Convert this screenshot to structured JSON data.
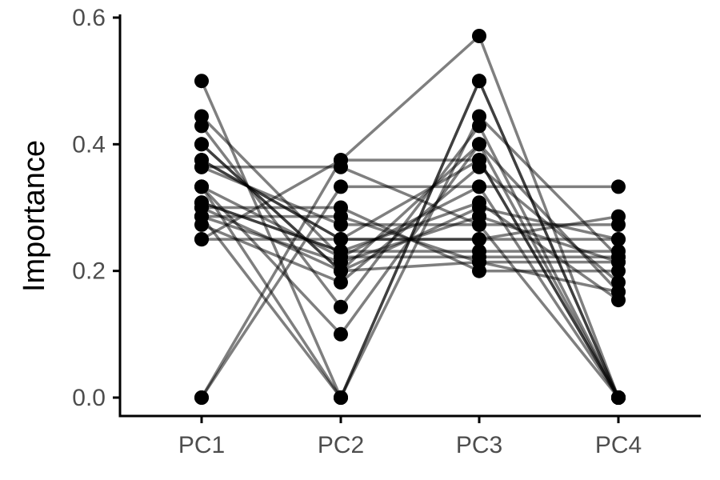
{
  "chart_data": {
    "type": "line",
    "title": "",
    "xlabel": "",
    "ylabel": "Importance",
    "categories": [
      "PC1",
      "PC2",
      "PC3",
      "PC4"
    ],
    "ylim": [
      0,
      0.6
    ],
    "yticks": [
      "0.0",
      "0.2",
      "0.4",
      "0.6"
    ],
    "ytick_values": [
      0,
      0.2,
      0.4,
      0.6
    ],
    "grid": false,
    "colors": {
      "line": "#000000",
      "point": "#000000",
      "tick_label": "#4d4d4d"
    },
    "series": [
      {
        "values": [
          0.5,
          0.0,
          0.5,
          0.0
        ]
      },
      {
        "values": [
          0.0,
          0.333,
          0.333,
          0.333
        ]
      },
      {
        "values": [
          0.0,
          0.375,
          0.571,
          0.0
        ]
      },
      {
        "values": [
          0.444,
          0.222,
          0.333,
          0.0
        ]
      },
      {
        "values": [
          0.429,
          0.143,
          0.429,
          0.0
        ]
      },
      {
        "values": [
          0.4,
          0.2,
          0.4,
          0.0
        ]
      },
      {
        "values": [
          0.375,
          0.25,
          0.375,
          0.0
        ]
      },
      {
        "values": [
          0.364,
          0.364,
          0.273,
          0.0
        ]
      },
      {
        "values": [
          0.333,
          0.0,
          0.444,
          0.222
        ]
      },
      {
        "values": [
          0.308,
          0.231,
          0.231,
          0.231
        ]
      },
      {
        "values": [
          0.3,
          0.3,
          0.2,
          0.2
        ]
      },
      {
        "values": [
          0.286,
          0.286,
          0.214,
          0.214
        ]
      },
      {
        "values": [
          0.286,
          0.214,
          0.286,
          0.214
        ]
      },
      {
        "values": [
          0.273,
          0.182,
          0.364,
          0.182
        ]
      },
      {
        "values": [
          0.25,
          0.25,
          0.25,
          0.25
        ]
      },
      {
        "values": [
          0.364,
          0.273,
          0.273,
          0.273
        ]
      },
      {
        "values": [
          0.333,
          0.1,
          0.4,
          0.167
        ]
      },
      {
        "values": [
          0.308,
          0.231,
          0.308,
          0.154
        ]
      },
      {
        "values": [
          0.286,
          0.0,
          0.5,
          0.0
        ]
      },
      {
        "values": [
          0.25,
          0.375,
          0.375,
          0.0
        ]
      },
      {
        "values": [
          0.4,
          0.2,
          0.214,
          0.167
        ]
      },
      {
        "values": [
          0.333,
          0.222,
          0.222,
          0.222
        ]
      },
      {
        "values": [
          0.3,
          0.2,
          0.3,
          0.25
        ]
      },
      {
        "values": [
          0.375,
          0.25,
          0.25,
          0.286
        ]
      }
    ]
  }
}
